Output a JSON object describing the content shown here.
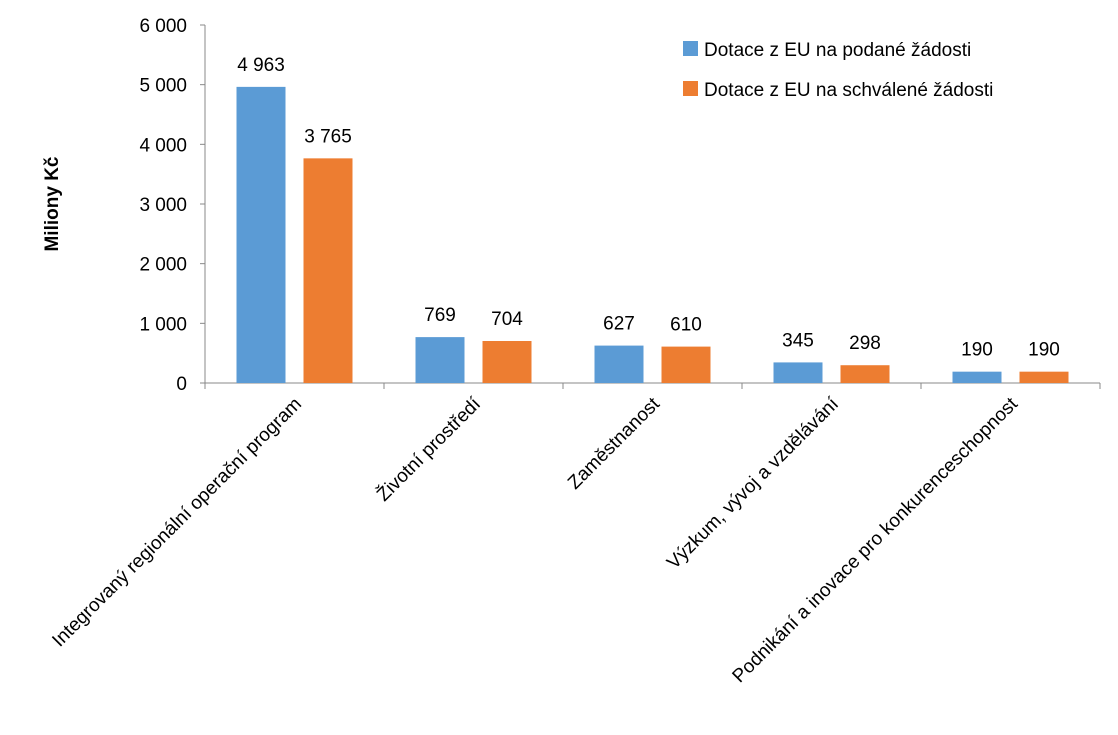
{
  "chart_data": {
    "type": "bar",
    "categories": [
      "Integrovaný regionální operační program",
      "Životní prostředí",
      "Zaměstnanost",
      "Výzkum, vývoj a vzdělávání",
      "Podnikání a inovace pro konkurenceschopnost"
    ],
    "series": [
      {
        "name": "Dotace z EU na podané žádosti",
        "values": [
          4963,
          769,
          627,
          345,
          190
        ],
        "color": "#5B9BD5"
      },
      {
        "name": "Dotace z EU na schválené žádosti",
        "values": [
          3765,
          704,
          610,
          298,
          190
        ],
        "color": "#ED7D31"
      }
    ],
    "data_labels": [
      [
        "4 963",
        "769",
        "627",
        "345",
        "190"
      ],
      [
        "3 765",
        "704",
        "610",
        "298",
        "190"
      ]
    ],
    "ylabel": "Miliony Kč",
    "ylim": [
      0,
      6000
    ],
    "yticks": [
      0,
      1000,
      2000,
      3000,
      4000,
      5000,
      6000
    ],
    "ytick_labels": [
      "0",
      "1 000",
      "2 000",
      "3 000",
      "4 000",
      "5 000",
      "6 000"
    ],
    "grid": false,
    "legend_position": "top-right"
  }
}
